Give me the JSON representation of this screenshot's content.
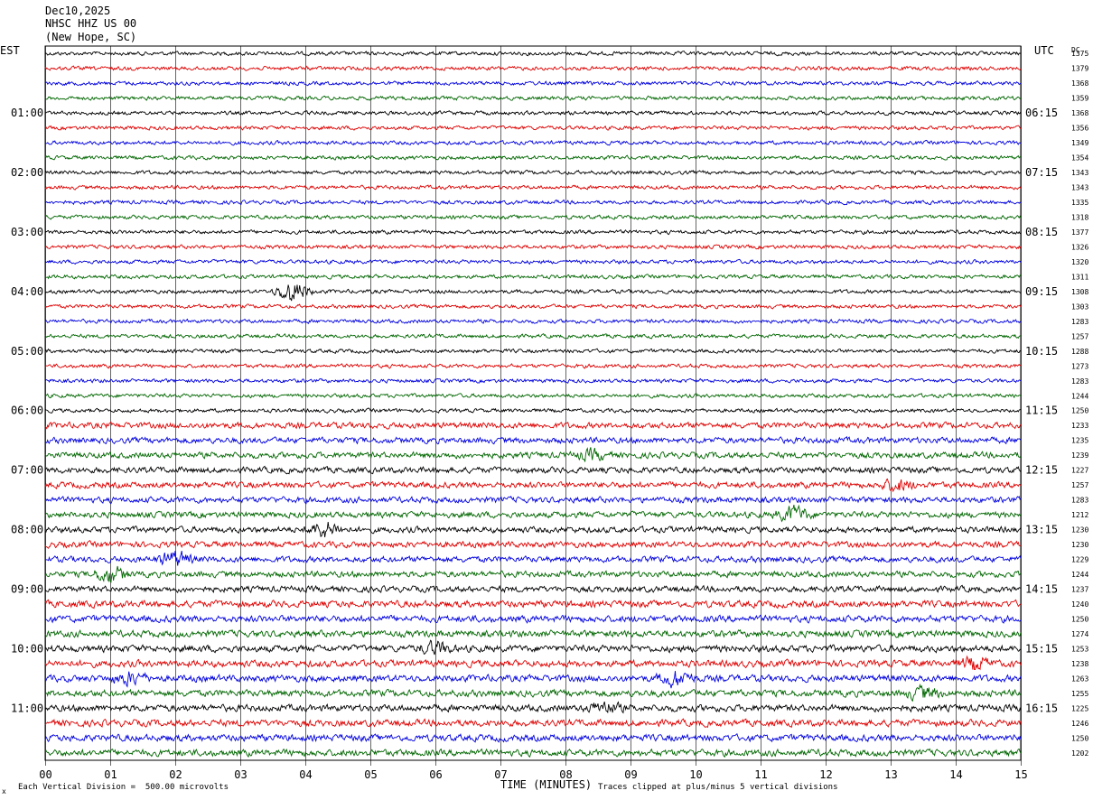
{
  "header": {
    "date": "Dec10,2025",
    "station": "NHSC HHZ US 00",
    "location": "(New Hope, SC)"
  },
  "left_tz": "EST",
  "right_tz": "UTC",
  "right_tag": "DC",
  "footer": {
    "scale_note": "Each Vertical Division =  500.00 microvolts",
    "clip_note": "Traces clipped at plus/minus 5 vertical divisions",
    "corner_mark": "x"
  },
  "colors": {
    "trace": [
      "#000000",
      "#dd0000",
      "#0000dd",
      "#006600"
    ],
    "grid": "#000000"
  },
  "chart_data": {
    "type": "line",
    "title": "",
    "xlabel": "TIME (MINUTES)",
    "ylabel": "",
    "xlim": [
      0,
      15
    ],
    "x_ticks": [
      "00",
      "01",
      "02",
      "03",
      "04",
      "05",
      "06",
      "07",
      "08",
      "09",
      "10",
      "11",
      "12",
      "13",
      "14",
      "15"
    ],
    "rows_per_hour": 4,
    "row_count": 48,
    "left_hour_labels": [
      "01:00",
      "02:00",
      "03:00",
      "04:00",
      "05:00",
      "06:00",
      "07:00",
      "08:00",
      "09:00",
      "10:00",
      "11:00"
    ],
    "right_hour_labels": [
      "06:15",
      "07:15",
      "08:15",
      "09:15",
      "10:15",
      "11:15",
      "12:15",
      "13:15",
      "14:15",
      "15:15",
      "16:15"
    ],
    "dc_offsets": [
      "1375",
      "1379",
      "1368",
      "1359",
      "1368",
      "1356",
      "1349",
      "1354",
      "1343",
      "1343",
      "1335",
      "1318",
      "1377",
      "1326",
      "1320",
      "1311",
      "1308",
      "1303",
      "1283",
      "1257",
      "1288",
      "1273",
      "1283",
      "1244",
      "1250",
      "1233",
      "1235",
      "1239",
      "1227",
      "1257",
      "1283",
      "1212",
      "1230",
      "1230",
      "1229",
      "1244",
      "1237",
      "1240",
      "1250",
      "1274",
      "1253",
      "1238",
      "1263",
      "1255",
      "1225",
      "1246",
      "1250",
      "1202"
    ],
    "events": [
      {
        "row": 16,
        "minute": 3.8,
        "amplitude": 3
      },
      {
        "row": 34,
        "minute": 2.0,
        "amplitude": 2
      },
      {
        "row": 35,
        "minute": 1.0,
        "amplitude": 2
      },
      {
        "row": 31,
        "minute": 11.5,
        "amplitude": 2
      },
      {
        "row": 32,
        "minute": 4.3,
        "amplitude": 2
      },
      {
        "row": 42,
        "minute": 9.7,
        "amplitude": 2
      },
      {
        "row": 42,
        "minute": 1.3,
        "amplitude": 1.5
      },
      {
        "row": 43,
        "minute": 13.5,
        "amplitude": 1.5
      },
      {
        "row": 44,
        "minute": 8.6,
        "amplitude": 1.5
      },
      {
        "row": 40,
        "minute": 6.0,
        "amplitude": 1.5
      },
      {
        "row": 29,
        "minute": 13.1,
        "amplitude": 1.5
      },
      {
        "row": 27,
        "minute": 8.4,
        "amplitude": 1.2
      },
      {
        "row": 41,
        "minute": 14.3,
        "amplitude": 1.5
      }
    ]
  }
}
